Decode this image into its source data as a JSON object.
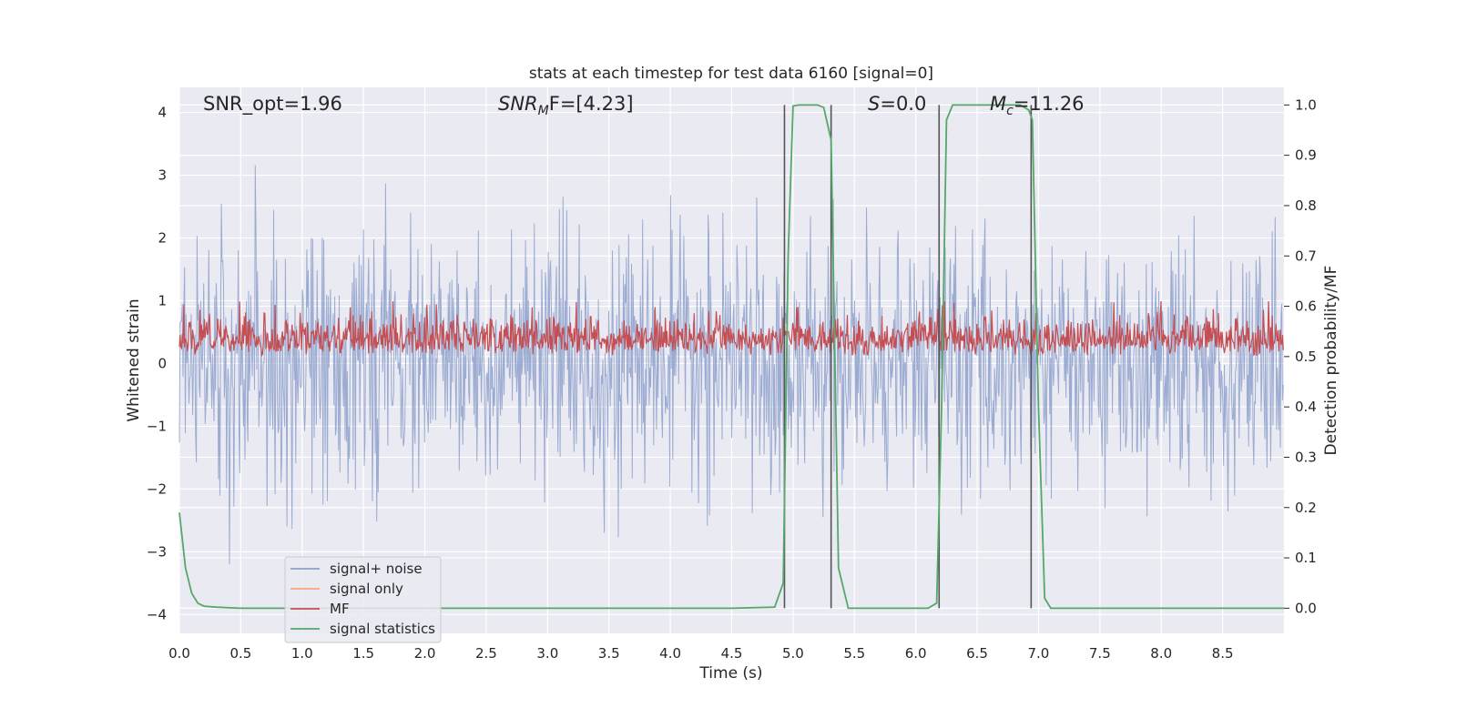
{
  "chart_data": {
    "type": "line",
    "title": "stats at each timestep for test data 6160 [signal=0]",
    "xlabel": "Time (s)",
    "ylabel_left": "Whitened strain",
    "ylabel_right": "Detection probability/MF",
    "xlim": [
      0,
      9.0
    ],
    "ylim_left": [
      -4.3,
      4.4
    ],
    "ylim_right": [
      -0.05,
      1.035
    ],
    "x_ticks": [
      "0.0",
      "0.5",
      "1.0",
      "1.5",
      "2.0",
      "2.5",
      "3.0",
      "3.5",
      "4.0",
      "4.5",
      "5.0",
      "5.5",
      "6.0",
      "6.5",
      "7.0",
      "7.5",
      "8.0",
      "8.5"
    ],
    "y_ticks_left": [
      "4",
      "3",
      "2",
      "1",
      "0",
      "−1",
      "−2",
      "−3",
      "−4"
    ],
    "y_ticks_right": [
      "1.0",
      "0.9",
      "0.8",
      "0.7",
      "0.6",
      "0.5",
      "0.4",
      "0.3",
      "0.2",
      "0.1",
      "0.0"
    ],
    "grid": true,
    "legend_position": "lower-left",
    "annotations": {
      "snr_opt": "SNR_opt=1.96",
      "snr_mf_base": "SNR",
      "snr_mf_sub": "M",
      "snr_mf_rest": "F=[4.23]",
      "s_label": "S",
      "s_value": "=0.0",
      "mc_label": "M",
      "mc_sub": "c",
      "mc_value": "=11.26"
    },
    "vertical_markers_s": [
      4.93,
      5.31,
      6.19,
      6.94
    ],
    "series": [
      {
        "name": "signal+ noise",
        "color": "#8da0cb",
        "axis": "left",
        "envelope": {
          "mean": 0.0,
          "std": 0.95,
          "x_step": 0.006
        }
      },
      {
        "name": "signal only",
        "color": "#f4a582",
        "axis": "left",
        "values": []
      },
      {
        "name": "MF",
        "color": "#c44e52",
        "axis": "right",
        "envelope": {
          "min": 0.5,
          "max": 0.6,
          "x_step": 0.006
        }
      },
      {
        "name": "signal statistics",
        "color": "#55a868",
        "axis": "right",
        "x": [
          0.0,
          0.05,
          0.1,
          0.15,
          0.2,
          0.3,
          0.5,
          1.0,
          2.0,
          3.0,
          4.0,
          4.5,
          4.85,
          4.92,
          4.96,
          5.0,
          5.05,
          5.2,
          5.25,
          5.31,
          5.37,
          5.45,
          5.5,
          5.8,
          6.1,
          6.17,
          6.21,
          6.25,
          6.3,
          6.5,
          6.85,
          6.92,
          6.95,
          7.0,
          7.05,
          7.1,
          7.5,
          8.0,
          8.5,
          9.0
        ],
        "values": [
          0.19,
          0.08,
          0.03,
          0.01,
          0.004,
          0.002,
          0.0,
          0.0,
          0.0,
          0.0,
          0.0,
          0.0,
          0.002,
          0.05,
          0.7,
          0.998,
          1.0,
          1.0,
          0.995,
          0.93,
          0.08,
          0.0,
          0.0,
          0.0,
          0.0,
          0.01,
          0.4,
          0.97,
          1.0,
          1.0,
          1.0,
          0.99,
          0.97,
          0.4,
          0.02,
          0.0,
          0.0,
          0.0,
          0.0,
          0.0
        ]
      }
    ]
  }
}
